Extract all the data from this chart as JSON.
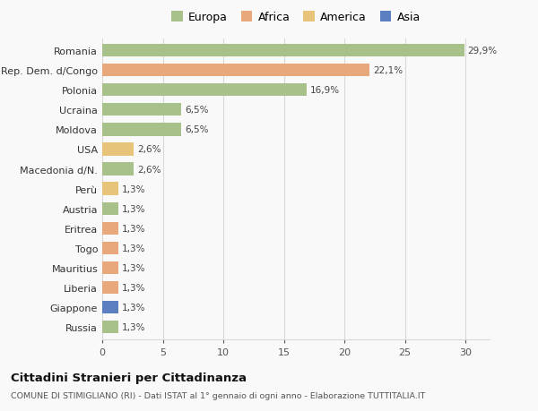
{
  "categories": [
    "Russia",
    "Giappone",
    "Liberia",
    "Mauritius",
    "Togo",
    "Eritrea",
    "Austria",
    "Perù",
    "Macedonia d/N.",
    "USA",
    "Moldova",
    "Ucraina",
    "Polonia",
    "Rep. Dem. d/Congo",
    "Romania"
  ],
  "values": [
    1.3,
    1.3,
    1.3,
    1.3,
    1.3,
    1.3,
    1.3,
    1.3,
    2.6,
    2.6,
    6.5,
    6.5,
    16.9,
    22.1,
    29.9
  ],
  "labels": [
    "1,3%",
    "1,3%",
    "1,3%",
    "1,3%",
    "1,3%",
    "1,3%",
    "1,3%",
    "1,3%",
    "2,6%",
    "2,6%",
    "6,5%",
    "6,5%",
    "16,9%",
    "22,1%",
    "29,9%"
  ],
  "colors": [
    "#a8c08a",
    "#5b7fbf",
    "#e8a87c",
    "#e8a87c",
    "#e8a87c",
    "#e8a87c",
    "#a8c08a",
    "#e8c47a",
    "#a8c08a",
    "#e8c47a",
    "#a8c08a",
    "#a8c08a",
    "#a8c08a",
    "#e8a87c",
    "#a8c08a"
  ],
  "legend_labels": [
    "Europa",
    "Africa",
    "America",
    "Asia"
  ],
  "legend_colors": [
    "#a8c08a",
    "#e8a87c",
    "#e8c47a",
    "#5b7fbf"
  ],
  "title": "Cittadini Stranieri per Cittadinanza",
  "subtitle": "COMUNE DI STIMIGLIANO (RI) - Dati ISTAT al 1° gennaio di ogni anno - Elaborazione TUTTITALIA.IT",
  "xlim": [
    0,
    32
  ],
  "background_color": "#f9f9f9",
  "grid_color": "#d8d8d8"
}
